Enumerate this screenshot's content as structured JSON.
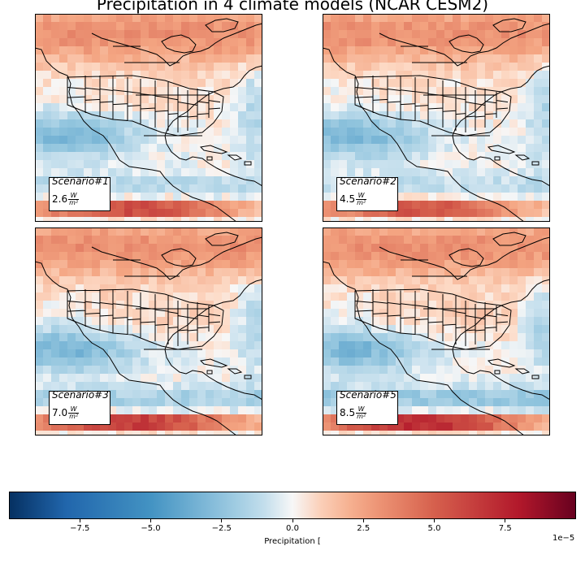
{
  "chart_data": {
    "type": "heatmap",
    "title": "Precipitation in 4 climate models (NCAR CESM2)",
    "panels": [
      {
        "scenario": "Scenario#1",
        "forcing": "2.6",
        "unit_num": "W",
        "unit_den": "m²",
        "intensity": 0.55
      },
      {
        "scenario": "Scenario#2",
        "forcing": "4.5",
        "unit_num": "W",
        "unit_den": "m²",
        "intensity": 0.45
      },
      {
        "scenario": "Scenario#3",
        "forcing": "7.0",
        "unit_num": "W",
        "unit_den": "m²",
        "intensity": 0.75
      },
      {
        "scenario": "Scenario#5",
        "forcing": "8.5",
        "unit_num": "W",
        "unit_den": "m²",
        "intensity": 0.95
      }
    ],
    "colormap": "RdBu_r",
    "colorbar": {
      "label": "Precipitation [",
      "exponent": "1e−5",
      "range": [
        -10,
        10
      ],
      "ticks": [
        -7.5,
        -5.0,
        -2.5,
        0.0,
        2.5,
        5.0,
        7.5
      ],
      "tick_labels": [
        "−7.5",
        "−5.0",
        "−2.5",
        "0.0",
        "2.5",
        "5.0",
        "7.5"
      ]
    },
    "colors": {
      "warm": "#d6604d",
      "cool": "#4393c3",
      "neutral": "#f7f7f7"
    }
  }
}
